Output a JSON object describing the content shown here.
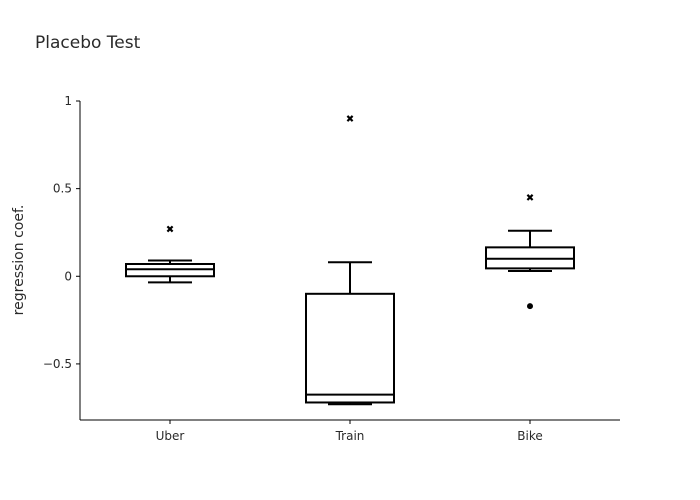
{
  "chart_data": {
    "type": "box",
    "title": "Placebo Test",
    "xlabel": "",
    "ylabel": "regression coef.",
    "ylim": [
      -0.82,
      1.0
    ],
    "yticks": [
      1,
      0.5,
      0,
      -0.5
    ],
    "ytick_labels": [
      "1",
      "0.5",
      "0",
      "−0.5"
    ],
    "categories": [
      "Uber",
      "Train",
      "Bike"
    ],
    "grid": false,
    "legend": "none",
    "line_color": "#000000",
    "boxes": [
      {
        "name": "Uber",
        "whisker_low": -0.035,
        "q1": 0.0,
        "median": 0.04,
        "q3": 0.07,
        "whisker_high": 0.09,
        "mean": 0.27,
        "outliers": []
      },
      {
        "name": "Train",
        "whisker_low": -0.73,
        "q1": -0.72,
        "median": -0.675,
        "q3": -0.1,
        "whisker_high": 0.08,
        "mean": 0.9,
        "outliers": []
      },
      {
        "name": "Bike",
        "whisker_low": 0.03,
        "q1": 0.045,
        "median": 0.1,
        "q3": 0.165,
        "whisker_high": 0.26,
        "mean": 0.45,
        "outliers": [
          -0.17
        ]
      }
    ]
  }
}
